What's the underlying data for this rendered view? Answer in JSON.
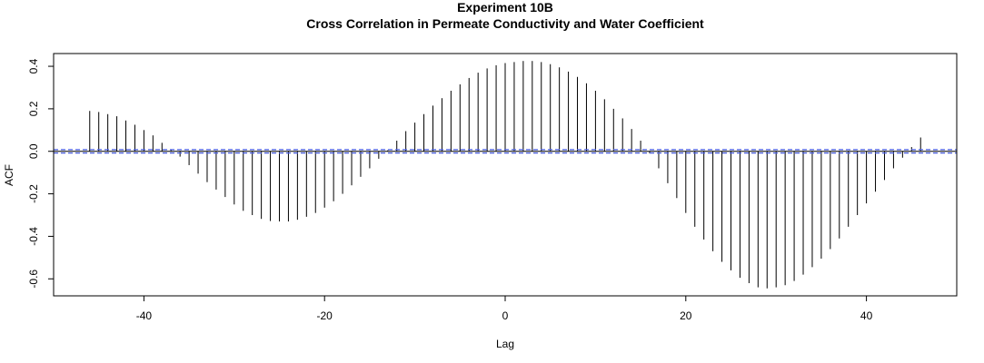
{
  "chart_data": {
    "type": "bar",
    "title": "Experiment  10B",
    "subtitle": "Cross Correlation in Permeate Conductivity and Water Coefficient",
    "xlabel": "Lag",
    "ylabel": "ACF",
    "xlim": [
      -50,
      50
    ],
    "ylim": [
      -0.68,
      0.46
    ],
    "x_ticks": [
      -40,
      -20,
      0,
      20,
      40
    ],
    "x_tick_labels": [
      "-40",
      "-20",
      "0",
      "20",
      "40"
    ],
    "y_ticks": [
      -0.6,
      -0.4,
      -0.2,
      0.0,
      0.2,
      0.4
    ],
    "y_tick_labels": [
      "-0.6",
      "-0.4",
      "-0.2",
      "0.0",
      "0.2",
      "0.4"
    ],
    "confidence_bounds": [
      0.008,
      -0.008
    ],
    "confidence_color": "#4a5fe0",
    "bar_color": "#000000",
    "lags": [
      -46,
      -45,
      -44,
      -43,
      -42,
      -41,
      -40,
      -39,
      -38,
      -37,
      -36,
      -35,
      -34,
      -33,
      -32,
      -31,
      -30,
      -29,
      -28,
      -27,
      -26,
      -25,
      -24,
      -23,
      -22,
      -21,
      -20,
      -19,
      -18,
      -17,
      -16,
      -15,
      -14,
      -13,
      -12,
      -11,
      -10,
      -9,
      -8,
      -7,
      -6,
      -5,
      -4,
      -3,
      -2,
      -1,
      0,
      1,
      2,
      3,
      4,
      5,
      6,
      7,
      8,
      9,
      10,
      11,
      12,
      13,
      14,
      15,
      16,
      17,
      18,
      19,
      20,
      21,
      22,
      23,
      24,
      25,
      26,
      27,
      28,
      29,
      30,
      31,
      32,
      33,
      34,
      35,
      36,
      37,
      38,
      39,
      40,
      41,
      42,
      43,
      44,
      45,
      46
    ],
    "values": [
      0.19,
      0.185,
      0.175,
      0.165,
      0.145,
      0.125,
      0.1,
      0.075,
      0.04,
      0.005,
      -0.025,
      -0.065,
      -0.105,
      -0.145,
      -0.18,
      -0.215,
      -0.25,
      -0.28,
      -0.3,
      -0.318,
      -0.328,
      -0.33,
      -0.33,
      -0.322,
      -0.308,
      -0.29,
      -0.265,
      -0.235,
      -0.2,
      -0.16,
      -0.12,
      -0.08,
      -0.035,
      0.005,
      0.05,
      0.095,
      0.135,
      0.175,
      0.215,
      0.25,
      0.285,
      0.315,
      0.345,
      0.37,
      0.39,
      0.405,
      0.415,
      0.42,
      0.425,
      0.425,
      0.42,
      0.41,
      0.395,
      0.375,
      0.35,
      0.32,
      0.285,
      0.245,
      0.2,
      0.155,
      0.105,
      0.05,
      -0.01,
      -0.08,
      -0.15,
      -0.22,
      -0.29,
      -0.355,
      -0.415,
      -0.47,
      -0.52,
      -0.56,
      -0.595,
      -0.62,
      -0.64,
      -0.645,
      -0.64,
      -0.63,
      -0.61,
      -0.58,
      -0.545,
      -0.505,
      -0.46,
      -0.41,
      -0.355,
      -0.3,
      -0.245,
      -0.19,
      -0.135,
      -0.08,
      -0.03,
      0.02,
      0.065
    ]
  }
}
